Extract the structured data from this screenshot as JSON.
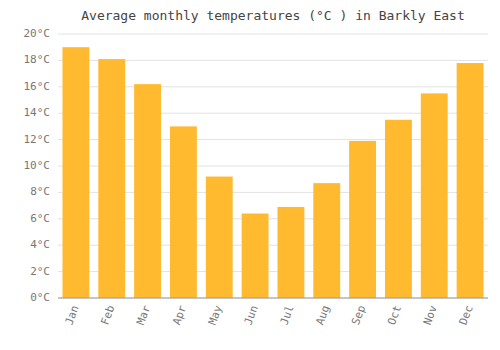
{
  "chart_data": {
    "type": "bar",
    "title": "Average monthly temperatures (°C ) in Barkly East",
    "categories": [
      "Jan",
      "Feb",
      "Mar",
      "Apr",
      "May",
      "Jun",
      "Jul",
      "Aug",
      "Sep",
      "Oct",
      "Nov",
      "Dec"
    ],
    "values": [
      19.0,
      18.1,
      16.2,
      13.0,
      9.2,
      6.4,
      6.9,
      8.7,
      11.9,
      13.5,
      15.5,
      17.8
    ],
    "color": "#FFBA30",
    "ylim": [
      0,
      20
    ],
    "yticks": [
      {
        "value": 0,
        "label": "0°C"
      },
      {
        "value": 2,
        "label": "2°C"
      },
      {
        "value": 4,
        "label": "4°C"
      },
      {
        "value": 6,
        "label": "6°C"
      },
      {
        "value": 8,
        "label": "8°C"
      },
      {
        "value": 10,
        "label": "10°C"
      },
      {
        "value": 12,
        "label": "12°C"
      },
      {
        "value": 14,
        "label": "14°C"
      },
      {
        "value": 16,
        "label": "16°C"
      },
      {
        "value": 18,
        "label": "18°C"
      },
      {
        "value": 20,
        "label": "20°C"
      }
    ],
    "grid": true
  }
}
